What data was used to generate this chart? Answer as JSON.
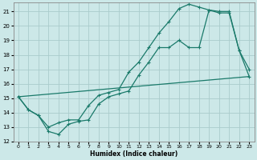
{
  "xlabel": "Humidex (Indice chaleur)",
  "bg_color": "#cce8e8",
  "grid_color": "#aacccc",
  "line_color": "#1a7a6a",
  "xlim": [
    -0.5,
    23.5
  ],
  "ylim": [
    12,
    21.6
  ],
  "yticks": [
    12,
    13,
    14,
    15,
    16,
    17,
    18,
    19,
    20,
    21
  ],
  "xticks": [
    0,
    1,
    2,
    3,
    4,
    5,
    6,
    7,
    8,
    9,
    10,
    11,
    12,
    13,
    14,
    15,
    16,
    17,
    18,
    19,
    20,
    21,
    22,
    23
  ],
  "line1_x": [
    0,
    1,
    2,
    3,
    4,
    5,
    6,
    7,
    8,
    9,
    10,
    11,
    12,
    13,
    14,
    15,
    16,
    17,
    18,
    19,
    20,
    21,
    22,
    23
  ],
  "line1_y": [
    15.1,
    14.2,
    13.8,
    12.7,
    12.5,
    13.2,
    13.4,
    13.5,
    14.6,
    15.1,
    15.3,
    15.5,
    16.6,
    17.5,
    18.5,
    18.5,
    19.0,
    18.5,
    18.5,
    21.1,
    21.0,
    21.0,
    18.3,
    17.0
  ],
  "line2_x": [
    0,
    1,
    2,
    3,
    4,
    5,
    6,
    7,
    8,
    9,
    10,
    11,
    12,
    13,
    14,
    15,
    16,
    17,
    18,
    19,
    20,
    21,
    22,
    23
  ],
  "line2_y": [
    15.1,
    14.2,
    13.8,
    13.0,
    13.3,
    13.5,
    13.5,
    14.5,
    15.2,
    15.4,
    15.6,
    16.8,
    17.5,
    18.5,
    19.5,
    20.3,
    21.2,
    21.5,
    21.3,
    21.1,
    20.9,
    20.9,
    18.3,
    16.5
  ],
  "line3_x": [
    0,
    23
  ],
  "line3_y": [
    15.1,
    16.5
  ]
}
